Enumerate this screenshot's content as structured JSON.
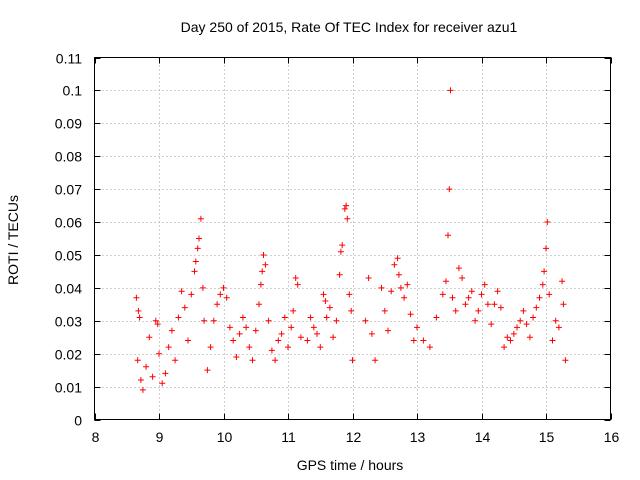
{
  "chart_data": {
    "type": "scatter",
    "title": "Day 250 of 2015, Rate Of TEC Index for receiver azu1",
    "xlabel": "GPS time / hours",
    "ylabel": "ROTI / TECUs",
    "xlim": [
      8,
      16
    ],
    "ylim": [
      0,
      0.11
    ],
    "xticks": [
      "8",
      "9",
      "10",
      "11",
      "12",
      "13",
      "14",
      "15",
      "16"
    ],
    "yticks": [
      "0",
      "0.01",
      "0.02",
      "0.03",
      "0.04",
      "0.05",
      "0.06",
      "0.07",
      "0.08",
      "0.09",
      "0.1",
      "0.11"
    ],
    "grid": true,
    "marker": "+",
    "color": "#ff0000",
    "series": [
      {
        "name": "ROTI",
        "points": [
          [
            8.65,
            0.037
          ],
          [
            8.68,
            0.033
          ],
          [
            8.7,
            0.031
          ],
          [
            8.67,
            0.018
          ],
          [
            8.72,
            0.012
          ],
          [
            8.75,
            0.009
          ],
          [
            8.8,
            0.016
          ],
          [
            8.85,
            0.025
          ],
          [
            8.9,
            0.013
          ],
          [
            8.95,
            0.03
          ],
          [
            8.98,
            0.029
          ],
          [
            9.0,
            0.02
          ],
          [
            9.05,
            0.011
          ],
          [
            9.1,
            0.014
          ],
          [
            9.15,
            0.022
          ],
          [
            9.2,
            0.027
          ],
          [
            9.25,
            0.018
          ],
          [
            9.3,
            0.031
          ],
          [
            9.35,
            0.039
          ],
          [
            9.4,
            0.034
          ],
          [
            9.45,
            0.024
          ],
          [
            9.5,
            0.038
          ],
          [
            9.55,
            0.045
          ],
          [
            9.57,
            0.048
          ],
          [
            9.6,
            0.052
          ],
          [
            9.62,
            0.055
          ],
          [
            9.65,
            0.061
          ],
          [
            9.68,
            0.04
          ],
          [
            9.7,
            0.03
          ],
          [
            9.75,
            0.015
          ],
          [
            9.8,
            0.022
          ],
          [
            9.85,
            0.03
          ],
          [
            9.9,
            0.035
          ],
          [
            9.95,
            0.038
          ],
          [
            10.0,
            0.04
          ],
          [
            10.05,
            0.037
          ],
          [
            10.1,
            0.028
          ],
          [
            10.15,
            0.024
          ],
          [
            10.2,
            0.019
          ],
          [
            10.25,
            0.026
          ],
          [
            10.3,
            0.031
          ],
          [
            10.35,
            0.028
          ],
          [
            10.4,
            0.022
          ],
          [
            10.45,
            0.018
          ],
          [
            10.5,
            0.027
          ],
          [
            10.55,
            0.035
          ],
          [
            10.58,
            0.041
          ],
          [
            10.6,
            0.045
          ],
          [
            10.62,
            0.05
          ],
          [
            10.65,
            0.047
          ],
          [
            10.7,
            0.03
          ],
          [
            10.75,
            0.021
          ],
          [
            10.8,
            0.018
          ],
          [
            10.85,
            0.024
          ],
          [
            10.9,
            0.026
          ],
          [
            10.95,
            0.031
          ],
          [
            11.0,
            0.022
          ],
          [
            11.05,
            0.028
          ],
          [
            11.08,
            0.033
          ],
          [
            11.12,
            0.043
          ],
          [
            11.15,
            0.041
          ],
          [
            11.2,
            0.025
          ],
          [
            11.3,
            0.024
          ],
          [
            11.35,
            0.031
          ],
          [
            11.4,
            0.028
          ],
          [
            11.45,
            0.026
          ],
          [
            11.5,
            0.022
          ],
          [
            11.55,
            0.038
          ],
          [
            11.58,
            0.036
          ],
          [
            11.6,
            0.031
          ],
          [
            11.65,
            0.034
          ],
          [
            11.7,
            0.025
          ],
          [
            11.75,
            0.03
          ],
          [
            11.8,
            0.044
          ],
          [
            11.82,
            0.051
          ],
          [
            11.84,
            0.053
          ],
          [
            11.88,
            0.064
          ],
          [
            11.9,
            0.065
          ],
          [
            11.92,
            0.061
          ],
          [
            11.95,
            0.038
          ],
          [
            11.98,
            0.033
          ],
          [
            12.0,
            0.018
          ],
          [
            12.25,
            0.043
          ],
          [
            12.2,
            0.03
          ],
          [
            12.3,
            0.026
          ],
          [
            12.35,
            0.018
          ],
          [
            12.45,
            0.04
          ],
          [
            12.5,
            0.033
          ],
          [
            12.55,
            0.027
          ],
          [
            12.6,
            0.039
          ],
          [
            12.65,
            0.047
          ],
          [
            12.7,
            0.049
          ],
          [
            12.72,
            0.044
          ],
          [
            12.75,
            0.04
          ],
          [
            12.8,
            0.037
          ],
          [
            12.85,
            0.041
          ],
          [
            12.9,
            0.032
          ],
          [
            12.95,
            0.024
          ],
          [
            13.0,
            0.028
          ],
          [
            13.1,
            0.024
          ],
          [
            13.2,
            0.022
          ],
          [
            13.3,
            0.031
          ],
          [
            13.4,
            0.038
          ],
          [
            13.45,
            0.042
          ],
          [
            13.48,
            0.056
          ],
          [
            13.5,
            0.07
          ],
          [
            13.52,
            0.1
          ],
          [
            13.55,
            0.037
          ],
          [
            13.6,
            0.033
          ],
          [
            13.65,
            0.046
          ],
          [
            13.7,
            0.043
          ],
          [
            13.75,
            0.035
          ],
          [
            13.8,
            0.037
          ],
          [
            13.85,
            0.039
          ],
          [
            13.9,
            0.03
          ],
          [
            13.95,
            0.033
          ],
          [
            14.0,
            0.038
          ],
          [
            14.05,
            0.041
          ],
          [
            14.1,
            0.035
          ],
          [
            14.15,
            0.029
          ],
          [
            14.2,
            0.035
          ],
          [
            14.25,
            0.039
          ],
          [
            14.3,
            0.034
          ],
          [
            14.35,
            0.022
          ],
          [
            14.4,
            0.025
          ],
          [
            14.45,
            0.024
          ],
          [
            14.5,
            0.026
          ],
          [
            14.55,
            0.028
          ],
          [
            14.6,
            0.03
          ],
          [
            14.65,
            0.033
          ],
          [
            14.7,
            0.029
          ],
          [
            14.75,
            0.025
          ],
          [
            14.8,
            0.031
          ],
          [
            14.85,
            0.034
          ],
          [
            14.9,
            0.037
          ],
          [
            14.95,
            0.041
          ],
          [
            14.97,
            0.045
          ],
          [
            15.0,
            0.052
          ],
          [
            15.02,
            0.06
          ],
          [
            15.05,
            0.038
          ],
          [
            15.1,
            0.024
          ],
          [
            15.15,
            0.03
          ],
          [
            15.2,
            0.028
          ],
          [
            15.25,
            0.042
          ],
          [
            15.27,
            0.035
          ],
          [
            15.3,
            0.018
          ]
        ]
      }
    ]
  }
}
